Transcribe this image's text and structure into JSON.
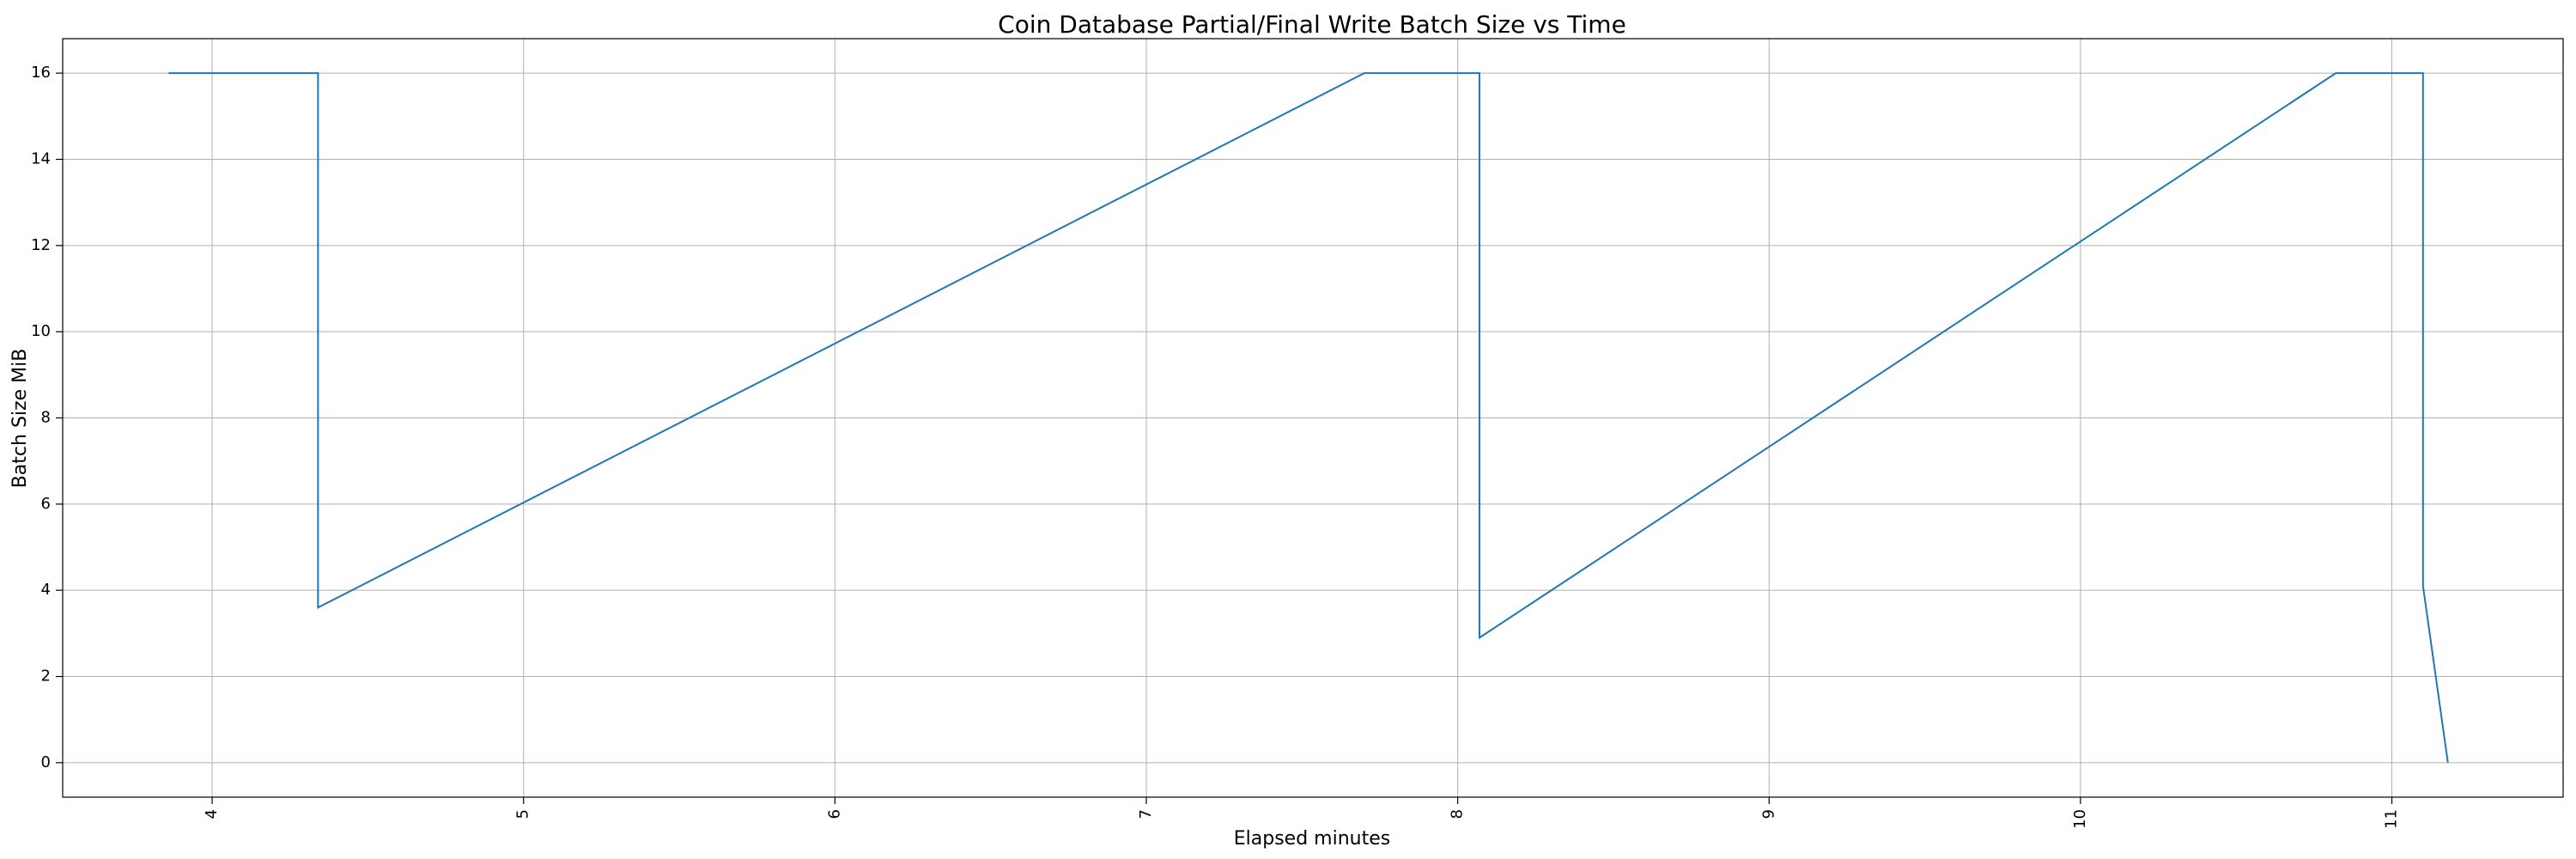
{
  "chart_data": {
    "type": "line",
    "title": "Coin Database Partial/Final Write Batch Size vs Time",
    "xlabel": "Elapsed minutes",
    "ylabel": "Batch Size MiB",
    "xlim": [
      3.52,
      11.55
    ],
    "ylim": [
      -0.8,
      16.8
    ],
    "xticks": [
      4,
      5,
      6,
      7,
      8,
      9,
      10,
      11
    ],
    "yticks": [
      0,
      2,
      4,
      6,
      8,
      10,
      12,
      14,
      16
    ],
    "xtick_rotation": -90,
    "grid": true,
    "line_color": "#1f77b4",
    "series": [
      {
        "x": [
          3.86,
          4.34,
          4.34,
          7.7,
          8.07,
          8.07,
          10.82,
          11.1,
          11.1,
          11.18
        ],
        "y": [
          16.0,
          16.0,
          3.6,
          16.0,
          16.0,
          2.9,
          16.0,
          16.0,
          4.1,
          0.0
        ]
      }
    ]
  }
}
